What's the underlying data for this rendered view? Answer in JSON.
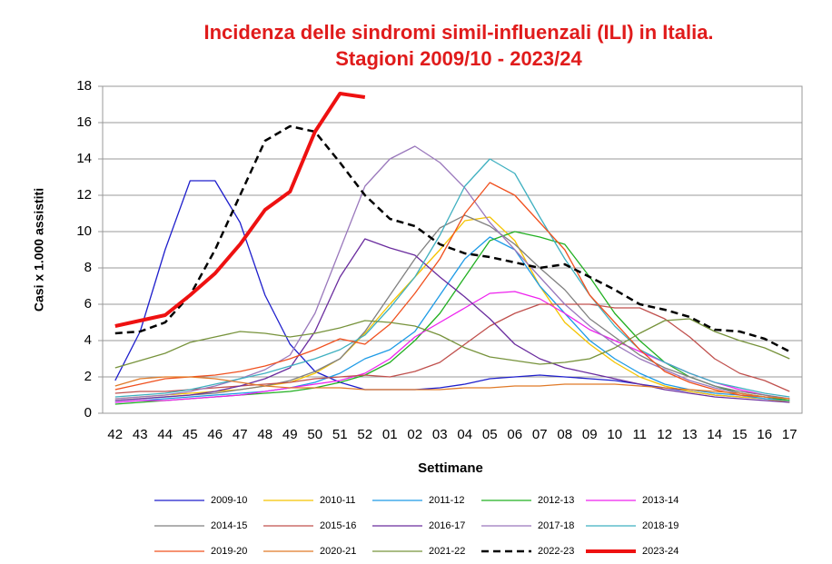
{
  "chart_data": {
    "type": "line",
    "title": "Incidenza delle sindromi simil-influenzali (ILI) in Italia.",
    "subtitle": "Stagioni 2009/10 - 2023/24",
    "y_label": "Casi x 1.000 assistiti",
    "x_label": "Settimane",
    "categories": [
      "42",
      "43",
      "44",
      "45",
      "46",
      "47",
      "48",
      "49",
      "50",
      "51",
      "52",
      "01",
      "02",
      "03",
      "04",
      "05",
      "06",
      "07",
      "08",
      "09",
      "10",
      "11",
      "12",
      "13",
      "14",
      "15",
      "16",
      "17"
    ],
    "ylim": [
      0,
      18
    ],
    "yticks": [
      0,
      2,
      4,
      6,
      8,
      10,
      12,
      14,
      16,
      18
    ],
    "grid": true,
    "legend": "bottom",
    "series": [
      {
        "name": "2009-10",
        "color": "#1f1fcc",
        "values": [
          1.8,
          4.5,
          9,
          12.8,
          12.8,
          10.5,
          6.5,
          3.8,
          2.3,
          1.7,
          1.3,
          1.3,
          1.3,
          1.4,
          1.6,
          1.9,
          2.0,
          2.1,
          2.0,
          1.9,
          1.8,
          1.6,
          1.4,
          1.2,
          1.0,
          0.9,
          0.8,
          0.7
        ]
      },
      {
        "name": "2010-11",
        "color": "#f5c400",
        "values": [
          0.8,
          0.9,
          1.0,
          1.1,
          1.2,
          1.3,
          1.5,
          1.7,
          2.2,
          3.0,
          4.4,
          6.0,
          7.5,
          9.0,
          10.6,
          10.8,
          9.5,
          7.0,
          5.0,
          3.8,
          2.8,
          2.0,
          1.5,
          1.2,
          1.0,
          0.9,
          0.8,
          0.6
        ]
      },
      {
        "name": "2011-12",
        "color": "#1e9be6",
        "values": [
          0.6,
          0.7,
          0.8,
          0.9,
          1.0,
          1.1,
          1.2,
          1.4,
          1.7,
          2.2,
          3.0,
          3.5,
          4.5,
          6.5,
          8.5,
          9.7,
          9.0,
          7.0,
          5.5,
          4.0,
          3.0,
          2.2,
          1.6,
          1.3,
          1.1,
          1.0,
          0.8,
          0.7
        ]
      },
      {
        "name": "2012-13",
        "color": "#22b022",
        "values": [
          0.5,
          0.6,
          0.7,
          0.8,
          0.9,
          1.0,
          1.1,
          1.2,
          1.4,
          1.7,
          2.1,
          2.8,
          4.0,
          5.5,
          7.5,
          9.5,
          10.0,
          9.7,
          9.3,
          7.5,
          5.5,
          4.0,
          2.8,
          2.0,
          1.5,
          1.1,
          0.9,
          0.7
        ]
      },
      {
        "name": "2013-14",
        "color": "#ee22ee",
        "values": [
          0.6,
          0.7,
          0.7,
          0.8,
          0.9,
          1.0,
          1.2,
          1.4,
          1.6,
          1.8,
          2.2,
          3.0,
          4.2,
          5.0,
          5.8,
          6.6,
          6.7,
          6.3,
          5.5,
          4.6,
          4.0,
          3.4,
          2.8,
          2.2,
          1.7,
          1.3,
          1.0,
          0.8
        ]
      },
      {
        "name": "2014-15",
        "color": "#808080",
        "values": [
          0.7,
          0.8,
          0.9,
          1.0,
          1.1,
          1.3,
          1.5,
          1.8,
          2.3,
          3.0,
          4.5,
          6.5,
          8.5,
          10.2,
          10.9,
          10.3,
          9.3,
          8.0,
          6.8,
          5.2,
          4.2,
          3.2,
          2.5,
          2.0,
          1.5,
          1.2,
          1.0,
          0.8
        ]
      },
      {
        "name": "2015-16",
        "color": "#c0504d",
        "values": [
          1.1,
          1.2,
          1.2,
          1.3,
          1.4,
          1.5,
          1.6,
          1.7,
          1.9,
          2.0,
          2.1,
          2.0,
          2.3,
          2.8,
          3.8,
          4.8,
          5.5,
          6.0,
          6.0,
          6.0,
          5.8,
          5.8,
          5.2,
          4.2,
          3.0,
          2.2,
          1.8,
          1.2
        ]
      },
      {
        "name": "2016-17",
        "color": "#6a2c9e",
        "values": [
          0.7,
          0.8,
          0.9,
          1.0,
          1.2,
          1.5,
          1.9,
          2.5,
          4.5,
          7.5,
          9.6,
          9.1,
          8.7,
          7.5,
          6.4,
          5.2,
          3.8,
          3.0,
          2.5,
          2.2,
          1.9,
          1.6,
          1.3,
          1.1,
          0.9,
          0.8,
          0.7,
          0.6
        ]
      },
      {
        "name": "2017-18",
        "color": "#9a78bc",
        "values": [
          0.8,
          0.9,
          1.0,
          1.2,
          1.5,
          1.9,
          2.4,
          3.2,
          5.5,
          9.0,
          12.5,
          14.0,
          14.7,
          13.8,
          12.4,
          10.5,
          9.0,
          7.5,
          6.0,
          4.8,
          3.8,
          3.0,
          2.4,
          1.8,
          1.4,
          1.1,
          0.9,
          0.8
        ]
      },
      {
        "name": "2018-19",
        "color": "#3fb0c0",
        "values": [
          0.9,
          1.0,
          1.1,
          1.3,
          1.6,
          1.9,
          2.2,
          2.6,
          3.0,
          3.5,
          4.3,
          5.8,
          7.5,
          9.8,
          12.5,
          14.0,
          13.2,
          10.8,
          8.5,
          6.5,
          4.8,
          3.5,
          2.8,
          2.2,
          1.7,
          1.4,
          1.1,
          0.9
        ]
      },
      {
        "name": "2019-20",
        "color": "#f0501e",
        "values": [
          1.3,
          1.6,
          1.9,
          2.0,
          2.1,
          2.3,
          2.6,
          3.0,
          3.5,
          4.1,
          3.8,
          4.9,
          6.6,
          8.5,
          11.0,
          12.7,
          12.0,
          10.5,
          9.0,
          6.5,
          5.0,
          3.5,
          2.3,
          1.7,
          1.3,
          1.0,
          0.9,
          0.8
        ]
      },
      {
        "name": "2020-21",
        "color": "#e07a28",
        "values": [
          1.5,
          1.9,
          2.0,
          2.0,
          1.9,
          1.7,
          1.5,
          1.4,
          1.4,
          1.4,
          1.3,
          1.3,
          1.3,
          1.3,
          1.4,
          1.4,
          1.5,
          1.5,
          1.6,
          1.6,
          1.6,
          1.5,
          1.4,
          1.3,
          1.2,
          1.1,
          0.9,
          0.8
        ]
      },
      {
        "name": "2021-22",
        "color": "#77933c",
        "values": [
          2.5,
          2.9,
          3.3,
          3.9,
          4.2,
          4.5,
          4.4,
          4.2,
          4.4,
          4.7,
          5.1,
          5.0,
          4.8,
          4.3,
          3.6,
          3.1,
          2.9,
          2.7,
          2.8,
          3.0,
          3.6,
          4.4,
          5.1,
          5.2,
          4.5,
          4.0,
          3.6,
          3.0
        ]
      },
      {
        "name": "2022-23",
        "color": "#000000",
        "dashed": true,
        "values": [
          4.4,
          4.5,
          5.0,
          6.5,
          9.0,
          12.0,
          15.0,
          15.8,
          15.5,
          13.8,
          12.0,
          10.7,
          10.3,
          9.3,
          8.8,
          8.6,
          8.3,
          8.0,
          8.2,
          7.5,
          6.8,
          6.0,
          5.7,
          5.3,
          4.6,
          4.5,
          4.1,
          3.4
        ]
      },
      {
        "name": "2023-24",
        "color": "#ee1111",
        "thick": true,
        "values": [
          4.8,
          5.1,
          5.4,
          6.5,
          7.7,
          9.3,
          11.2,
          12.2,
          15.5,
          17.6,
          17.4,
          null,
          null,
          null,
          null,
          null,
          null,
          null,
          null,
          null,
          null,
          null,
          null,
          null,
          null,
          null,
          null,
          null
        ]
      }
    ]
  }
}
